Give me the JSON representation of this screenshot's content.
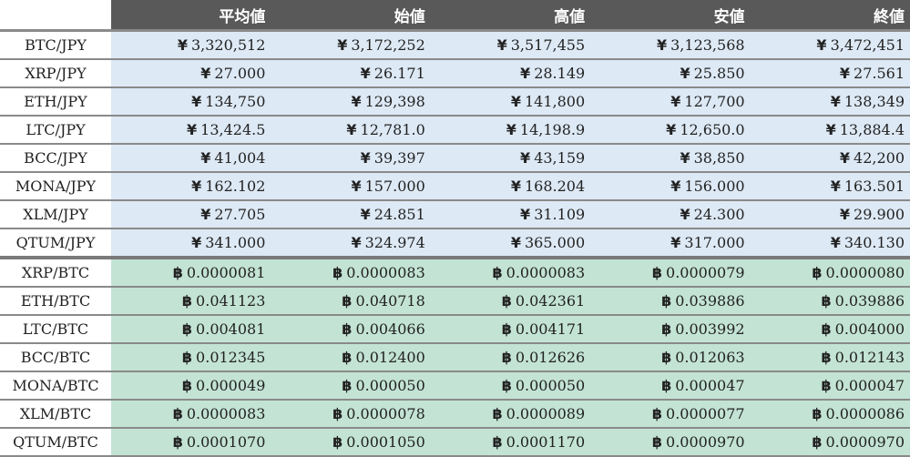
{
  "header": [
    "平均値",
    "始値",
    "高値",
    "安値",
    "終値"
  ],
  "colors": {
    "header_bg": "#595959",
    "jpy_bg": "#dde9f5",
    "btc_bg": "#c3e3d5"
  },
  "currency_symbols": {
    "jpy": "¥",
    "btc": "฿"
  },
  "rows": [
    {
      "pair": "BTC/JPY",
      "cur": "jpy",
      "values": [
        "3,320,512",
        "3,172,252",
        "3,517,455",
        "3,123,568",
        "3,472,451"
      ]
    },
    {
      "pair": "XRP/JPY",
      "cur": "jpy",
      "values": [
        "27.000",
        "26.171",
        "28.149",
        "25.850",
        "27.561"
      ]
    },
    {
      "pair": "ETH/JPY",
      "cur": "jpy",
      "values": [
        "134,750",
        "129,398",
        "141,800",
        "127,700",
        "138,349"
      ]
    },
    {
      "pair": "LTC/JPY",
      "cur": "jpy",
      "values": [
        "13,424.5",
        "12,781.0",
        "14,198.9",
        "12,650.0",
        "13,884.4"
      ]
    },
    {
      "pair": "BCC/JPY",
      "cur": "jpy",
      "values": [
        "41,004",
        "39,397",
        "43,159",
        "38,850",
        "42,200"
      ]
    },
    {
      "pair": "MONA/JPY",
      "cur": "jpy",
      "values": [
        "162.102",
        "157.000",
        "168.204",
        "156.000",
        "163.501"
      ]
    },
    {
      "pair": "XLM/JPY",
      "cur": "jpy",
      "values": [
        "27.705",
        "24.851",
        "31.109",
        "24.300",
        "29.900"
      ]
    },
    {
      "pair": "QTUM/JPY",
      "cur": "jpy",
      "values": [
        "341.000",
        "324.974",
        "365.000",
        "317.000",
        "340.130"
      ]
    },
    {
      "pair": "XRP/BTC",
      "cur": "btc",
      "values": [
        "0.0000081",
        "0.0000083",
        "0.0000083",
        "0.0000079",
        "0.0000080"
      ]
    },
    {
      "pair": "ETH/BTC",
      "cur": "btc",
      "values": [
        "0.041123",
        "0.040718",
        "0.042361",
        "0.039886",
        "0.039886"
      ]
    },
    {
      "pair": "LTC/BTC",
      "cur": "btc",
      "values": [
        "0.004081",
        "0.004066",
        "0.004171",
        "0.003992",
        "0.004000"
      ]
    },
    {
      "pair": "BCC/BTC",
      "cur": "btc",
      "values": [
        "0.012345",
        "0.012400",
        "0.012626",
        "0.012063",
        "0.012143"
      ]
    },
    {
      "pair": "MONA/BTC",
      "cur": "btc",
      "values": [
        "0.000049",
        "0.000050",
        "0.000050",
        "0.000047",
        "0.000047"
      ]
    },
    {
      "pair": "XLM/BTC",
      "cur": "btc",
      "values": [
        "0.0000083",
        "0.0000078",
        "0.0000089",
        "0.0000077",
        "0.0000086"
      ]
    },
    {
      "pair": "QTUM/BTC",
      "cur": "btc",
      "values": [
        "0.0001070",
        "0.0001050",
        "0.0001170",
        "0.0000970",
        "0.0000970"
      ]
    }
  ]
}
